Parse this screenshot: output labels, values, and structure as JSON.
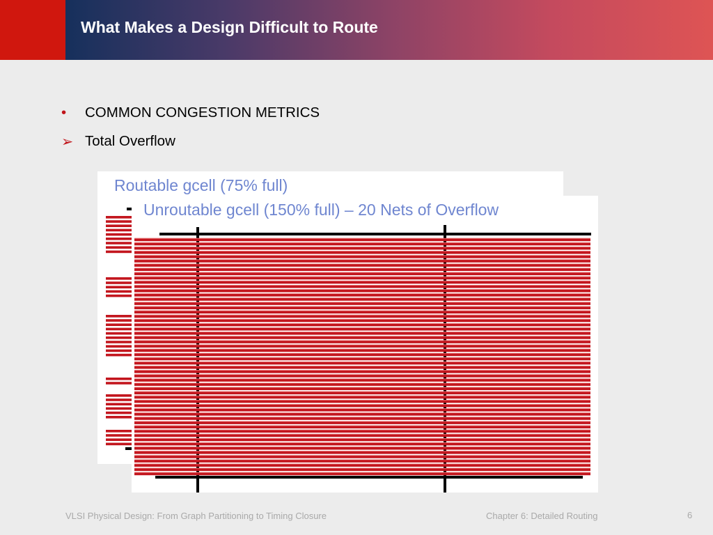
{
  "slide": {
    "title": "What Makes a Design Difficult to Route"
  },
  "bullets": [
    {
      "marker": "•",
      "text": "COMMON CONGESTION METRICS"
    },
    {
      "marker": "➢",
      "text": "Total Overflow"
    }
  ],
  "figure": {
    "routable_caption": "Routable gcell (75% full)",
    "unroutable_caption": "Unroutable gcell (150% full) – 20 Nets of Overflow",
    "routable_fill_percent": 75,
    "unroutable_fill_percent": 150,
    "overflow_nets": 20,
    "wire_color": "#c3161e",
    "wire_highlight": "#ee8080",
    "boundary_color": "#000000"
  },
  "footer": {
    "left": "VLSI Physical Design: From Graph Partitioning to Timing Closure",
    "middle": "Chapter 6: Detailed Routing",
    "page": "6"
  }
}
